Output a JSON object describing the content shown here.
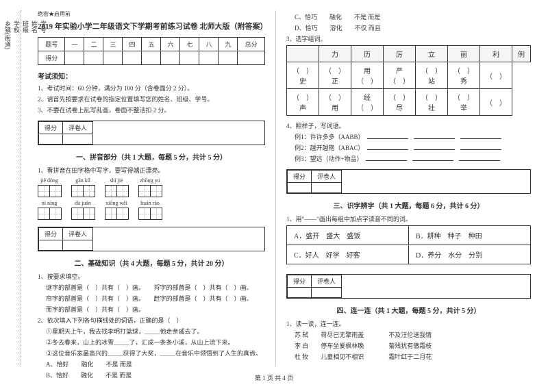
{
  "side": {
    "labels": [
      "学号",
      "姓名",
      "班级",
      "学校",
      "乡镇(街道)"
    ],
    "marks": [
      "题",
      "答",
      "本",
      "内",
      "线",
      "封",
      "密"
    ]
  },
  "header": {
    "confidential": "绝密★启用前",
    "title": "2019 年实验小学二年级语文下学期考前练习试卷 北师大版（附答案）"
  },
  "scoreTable": {
    "headers": [
      "题号",
      "一",
      "二",
      "三",
      "四",
      "五",
      "六",
      "七",
      "八",
      "九",
      "总分"
    ],
    "row2": "得分"
  },
  "notice": {
    "title": "考试须知：",
    "items": [
      "1、考试时间：60 分钟，满分为 100 分（含卷面分 2 分）。",
      "2、请首先按要求在试卷的指定位置填写您的姓名、班级、学号。",
      "3、不要在试卷上乱写乱画，卷面不整洁扣 2 分。"
    ]
  },
  "scoreBox": {
    "c1": "得分",
    "c2": "评卷人"
  },
  "sec1": {
    "title": "一、拼音部分（共 1 大题，每题 5 分，共计 5 分）",
    "q1": "1、看拼音在田字格中写字，要写得端正漂亮。",
    "row1": [
      "jiě dòng",
      "gān kū",
      "shì jiè",
      "zhōng yú"
    ],
    "row2": [
      "ní nìng",
      "dù juān",
      "xiōng wěi",
      "huán rào"
    ]
  },
  "sec2": {
    "title": "二、基础知识（共 4 大题，每题 5 分，共计 20 分）",
    "q1": "1、按要求填空。",
    "q1a": "谜字的部首是（　）共有（　）画。　　捋字的部首是（　）共有（　）画。",
    "q1b": "帘字的部首是（　）共有（　）画。　　赶字的部首是（　）共有（　）画。",
    "q1c": "而字的部首是（　）共有（　）画。",
    "q2": "2、依次填入下列各句横线处的词语，正确的是（　）",
    "q2a": "①星期天上午，我去找李明打篮球，_____他走亲戚去了。",
    "q2b": "②冬去春来，山上的冰雪_____了，汇成一条条小溪，从山上流下来。",
    "q2c": "③这位音乐家最高兴的_____获得了大奖，_____在音乐中领悟到了人生的真谛。",
    "optA": "A、恰好　　融化　　不是 而是",
    "optB": "B、恰好　　融化　　不是 而是",
    "optC": "C、恰巧　　融化　　不是 而是",
    "optD": "D、恰巧　　溶化　　不仅 而且",
    "q3": "3、选字组词。",
    "charHdr": [
      "力",
      "历",
      "厉",
      "立",
      "丽",
      "利",
      "例"
    ],
    "charRow1": [
      "（　）史",
      "（　）正",
      "用（　）",
      "严（　）",
      "（　）站",
      "（　）秀",
      "（　）"
    ],
    "charRow2": [
      "（　）声",
      "（　）用",
      "经（　）",
      "（　）尽",
      "（　）壮",
      "（　）举",
      "（　）"
    ],
    "q4": "4、照样子，写词语。",
    "q4a": "例1：许许多多（AABB）",
    "q4b": "例2：越开越艳（ABAC）",
    "q4c": "例3：望远（动作+物品）"
  },
  "sec3": {
    "title": "三、识字辨字（共 1 大题，每题 6 分，共计 6 分）",
    "q1": "1、用\"——\"画出每组中加点字读音不同的词。",
    "cells": {
      "A": "A．盛开　盛大　盛饭",
      "B": "B．耕种　种子　种田",
      "C": "C．好人　好学　好客",
      "D": "D．养分　水分　分别"
    }
  },
  "sec4": {
    "title": "四、连一连（共 1 大题，每题 5 分，共计 5 分）",
    "q1": "1、读一读，连一连。",
    "l1a": "苏 轼　　荷尽已无擎雨盖",
    "l1b": "不及汪伦送我情",
    "l2a": "李 白　　停车坐爱枫林晚",
    "l2b": "菊残犹有傲霜枝",
    "l3a": "杜 牧　　儿童相见不相识",
    "l3b": "霜叶红于二月花"
  },
  "footer": "第 1 页 共 4 页"
}
